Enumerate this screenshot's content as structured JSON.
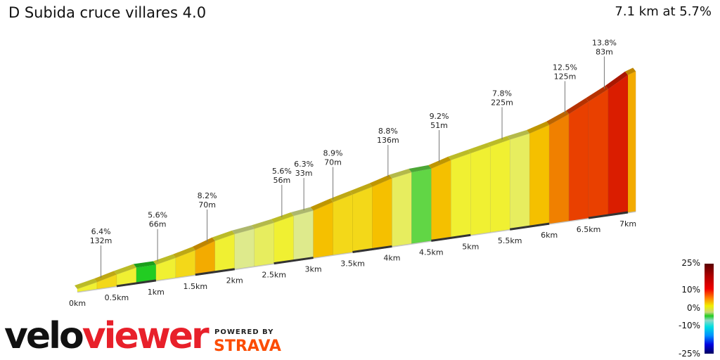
{
  "header": {
    "title": "D Subida cruce villares 4.0",
    "summary": "7.1 km at 5.7%"
  },
  "chart_data": {
    "type": "area",
    "title": "D Subida cruce villares 4.0",
    "total_distance_km": 7.1,
    "average_gradient_pct": 5.7,
    "x_ticks": [
      "0km",
      "0.5km",
      "1km",
      "1.5km",
      "2km",
      "2.5km",
      "3km",
      "3.5km",
      "4km",
      "4.5km",
      "5km",
      "5.5km",
      "6km",
      "6.5km",
      "7km"
    ],
    "segments_km_start": [
      0,
      0.25,
      0.5,
      0.75,
      1.0,
      1.25,
      1.5,
      1.75,
      2.0,
      2.25,
      2.5,
      2.75,
      3.0,
      3.25,
      3.5,
      3.75,
      4.0,
      4.25,
      4.5,
      4.75,
      5.0,
      5.25,
      5.5,
      5.75,
      6.0,
      6.25,
      6.5,
      6.75,
      7.0
    ],
    "segments_gradient_pct": [
      5,
      6,
      5,
      0,
      5,
      6,
      8,
      5,
      3,
      4,
      5,
      3,
      7,
      6,
      6,
      7,
      4,
      1,
      7,
      5,
      5,
      5,
      4,
      7,
      10,
      12,
      12,
      14,
      8
    ],
    "annotations": [
      {
        "km": 0.3,
        "grade": "6.4%",
        "length": "132m"
      },
      {
        "km": 1.02,
        "grade": "5.6%",
        "length": "66m"
      },
      {
        "km": 1.65,
        "grade": "8.2%",
        "length": "70m"
      },
      {
        "km": 2.6,
        "grade": "5.6%",
        "length": "56m"
      },
      {
        "km": 2.88,
        "grade": "6.3%",
        "length": "33m"
      },
      {
        "km": 3.25,
        "grade": "8.9%",
        "length": "70m"
      },
      {
        "km": 3.95,
        "grade": "8.8%",
        "length": "136m"
      },
      {
        "km": 4.6,
        "grade": "9.2%",
        "length": "51m"
      },
      {
        "km": 5.4,
        "grade": "7.8%",
        "length": "225m"
      },
      {
        "km": 6.2,
        "grade": "12.5%",
        "length": "125m"
      },
      {
        "km": 6.7,
        "grade": "13.8%",
        "length": "83m"
      }
    ],
    "legend": {
      "labels": [
        "25%",
        "10%",
        "0%",
        "-10%",
        "-25%"
      ]
    }
  },
  "logo": {
    "velo": "velo",
    "viewer": "viewer",
    "powered_by": "POWERED BY",
    "strava": "STRAVA"
  }
}
